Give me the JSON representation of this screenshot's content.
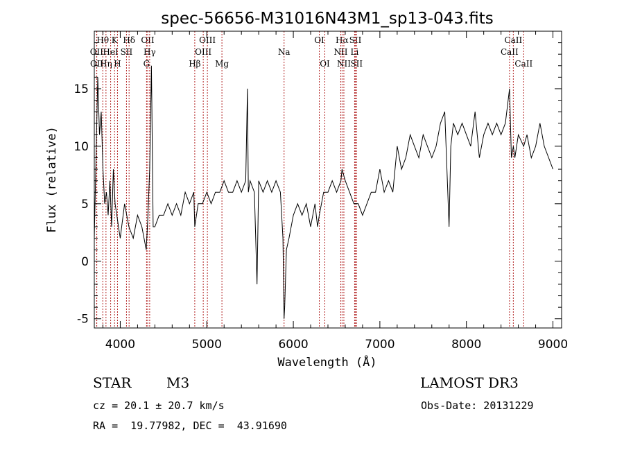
{
  "chart_data": {
    "type": "line",
    "title": "spec-56656-M31016N43M1_sp13-043.fits",
    "xlabel": "Wavelength (Å)",
    "ylabel": "Flux (relative)",
    "xlim": [
      3700,
      9100
    ],
    "ylim": [
      -5.8,
      20
    ],
    "x_ticks": [
      4000,
      5000,
      6000,
      7000,
      8000,
      9000
    ],
    "y_ticks": [
      -5,
      0,
      5,
      10,
      15
    ],
    "grid": false,
    "series": [
      {
        "name": "flux",
        "x": [
          3700,
          3720,
          3740,
          3760,
          3780,
          3800,
          3820,
          3840,
          3860,
          3880,
          3900,
          3920,
          3940,
          3960,
          3980,
          4000,
          4050,
          4100,
          4150,
          4200,
          4250,
          4300,
          4320,
          4340,
          4360,
          4380,
          4400,
          4450,
          4500,
          4550,
          4600,
          4650,
          4700,
          4750,
          4800,
          4850,
          4861,
          4900,
          4950,
          5000,
          5050,
          5100,
          5150,
          5200,
          5250,
          5300,
          5350,
          5400,
          5450,
          5470,
          5480,
          5500,
          5550,
          5580,
          5600,
          5650,
          5700,
          5750,
          5800,
          5850,
          5880,
          5893,
          5900,
          5920,
          5950,
          6000,
          6050,
          6100,
          6150,
          6200,
          6250,
          6280,
          6300,
          6350,
          6400,
          6450,
          6500,
          6550,
          6563,
          6600,
          6650,
          6700,
          6750,
          6800,
          6850,
          6900,
          6950,
          7000,
          7050,
          7100,
          7150,
          7200,
          7250,
          7300,
          7350,
          7400,
          7450,
          7500,
          7550,
          7600,
          7650,
          7700,
          7750,
          7800,
          7820,
          7850,
          7900,
          7950,
          8000,
          8050,
          8100,
          8150,
          8200,
          8250,
          8300,
          8350,
          8400,
          8450,
          8498,
          8520,
          8542,
          8560,
          8600,
          8662,
          8700,
          8750,
          8800,
          8850,
          8900,
          8950,
          9000
        ],
        "y": [
          2,
          9,
          16,
          11,
          13,
          8,
          5,
          6,
          4,
          7,
          3,
          8,
          5,
          4,
          3,
          2,
          5,
          3,
          2,
          4,
          3,
          1,
          4,
          8,
          17,
          3,
          3,
          4,
          4,
          5,
          4,
          5,
          4,
          6,
          5,
          6,
          3,
          5,
          5,
          6,
          5,
          6,
          6,
          7,
          6,
          6,
          7,
          6,
          7,
          15,
          6,
          7,
          6,
          -2,
          7,
          6,
          7,
          6,
          7,
          6,
          2,
          -5,
          -4,
          1,
          2,
          4,
          5,
          4,
          5,
          3,
          5,
          3,
          4,
          6,
          6,
          7,
          6,
          7,
          8,
          7,
          6,
          5,
          5,
          4,
          5,
          6,
          6,
          8,
          6,
          7,
          6,
          10,
          8,
          9,
          11,
          10,
          9,
          11,
          10,
          9,
          10,
          12,
          13,
          3,
          10,
          12,
          11,
          12,
          11,
          10,
          13,
          9,
          11,
          12,
          11,
          12,
          11,
          12,
          15,
          9,
          10,
          9,
          11,
          10,
          11,
          9,
          10,
          12,
          10,
          9,
          8
        ]
      }
    ],
    "line_markers": [
      {
        "label": "Hθ",
        "wavelength": 3798,
        "row": 1
      },
      {
        "label": "OII",
        "wavelength": 3727,
        "row": 2
      },
      {
        "label": "OII",
        "wavelength": 3729,
        "row": 3
      },
      {
        "label": "Hη",
        "wavelength": 3835,
        "row": 3
      },
      {
        "label": "K",
        "wavelength": 3934,
        "row": 1
      },
      {
        "label": "HeI",
        "wavelength": 3889,
        "row": 2
      },
      {
        "label": "H",
        "wavelength": 3968,
        "row": 3
      },
      {
        "label": "SII",
        "wavelength": 4072,
        "row": 2
      },
      {
        "label": "Hδ",
        "wavelength": 4102,
        "row": 1
      },
      {
        "label": "OII",
        "wavelength": 4317,
        "row": 1
      },
      {
        "label": "G",
        "wavelength": 4304,
        "row": 3
      },
      {
        "label": "Hγ",
        "wavelength": 4340,
        "row": 2
      },
      {
        "label": "Hβ",
        "wavelength": 4861,
        "row": 3
      },
      {
        "label": "OIII",
        "wavelength": 4959,
        "row": 2
      },
      {
        "label": "OIII",
        "wavelength": 5007,
        "row": 1
      },
      {
        "label": "Mg",
        "wavelength": 5175,
        "row": 3
      },
      {
        "label": "Na",
        "wavelength": 5893,
        "row": 2
      },
      {
        "label": "OI",
        "wavelength": 6300,
        "row": 1
      },
      {
        "label": "OI",
        "wavelength": 6364,
        "row": 3
      },
      {
        "label": "Hα",
        "wavelength": 6563,
        "row": 1
      },
      {
        "label": "NII",
        "wavelength": 6548,
        "row": 2
      },
      {
        "label": "NII",
        "wavelength": 6584,
        "row": 3
      },
      {
        "label": "SII",
        "wavelength": 6717,
        "row": 1
      },
      {
        "label": "Li",
        "wavelength": 6708,
        "row": 2
      },
      {
        "label": "SII",
        "wavelength": 6731,
        "row": 3
      },
      {
        "label": "CaII",
        "wavelength": 8542,
        "row": 1
      },
      {
        "label": "CaII",
        "wavelength": 8498,
        "row": 2
      },
      {
        "label": "CaII",
        "wavelength": 8662,
        "row": 3
      }
    ]
  },
  "info": {
    "object_class": "STAR",
    "subclass": "M3",
    "survey": "LAMOST DR3",
    "cz": "cz = 20.1 ± 20.7 km/s",
    "obs_date": "Obs-Date: 20131229",
    "coords": "RA =  19.77982, DEC =  43.91690"
  },
  "colors": {
    "spectrum": "#000000",
    "marker_line": "#b22222",
    "axes": "#000000"
  }
}
